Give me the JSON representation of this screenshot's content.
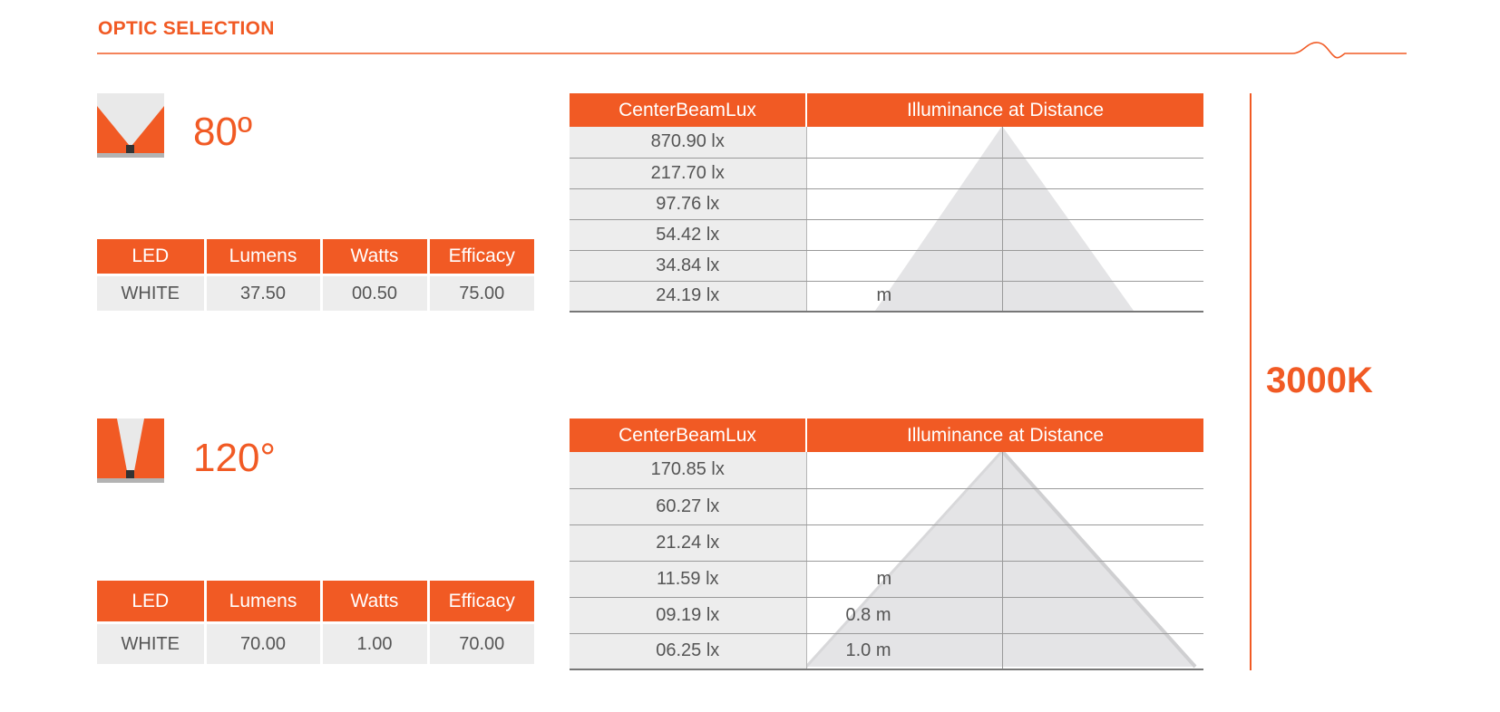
{
  "header": {
    "title": "OPTIC SELECTION"
  },
  "cct": "3000K",
  "colors": {
    "accent": "#f15a24",
    "cell": "#ededed",
    "beam": "#e4e4e6"
  },
  "optics": [
    {
      "icon": "beam-80-icon",
      "angle": "80º",
      "spec_headers": [
        "LED",
        "Lumens",
        "Watts",
        "Efficacy"
      ],
      "spec_row": [
        "WHITE",
        "37.50",
        "00.50",
        "75.00"
      ],
      "lux_headers": [
        "CenterBeamLux",
        "Illuminance at Distance"
      ],
      "lux_rows": [
        {
          "lux": "870.90 lx",
          "dist": ""
        },
        {
          "lux": "217.70 lx",
          "dist": ""
        },
        {
          "lux": "97.76 lx",
          "dist": ""
        },
        {
          "lux": "54.42 lx",
          "dist": ""
        },
        {
          "lux": "34.84 lx",
          "dist": ""
        },
        {
          "lux": "24.19 lx",
          "dist": "m"
        }
      ]
    },
    {
      "icon": "beam-120-icon",
      "angle": "120°",
      "spec_headers": [
        "LED",
        "Lumens",
        "Watts",
        "Efficacy"
      ],
      "spec_row": [
        "WHITE",
        "70.00",
        "1.00",
        "70.00"
      ],
      "lux_headers": [
        "CenterBeamLux",
        "Illuminance at Distance"
      ],
      "lux_rows": [
        {
          "lux": "170.85 lx",
          "dist": ""
        },
        {
          "lux": "60.27 lx",
          "dist": ""
        },
        {
          "lux": "21.24 lx",
          "dist": ""
        },
        {
          "lux": "11.59 lx",
          "dist": "m"
        },
        {
          "lux": "09.19 lx",
          "dist": "0.8 m"
        },
        {
          "lux": "06.25 lx",
          "dist": "1.0 m"
        }
      ]
    }
  ]
}
